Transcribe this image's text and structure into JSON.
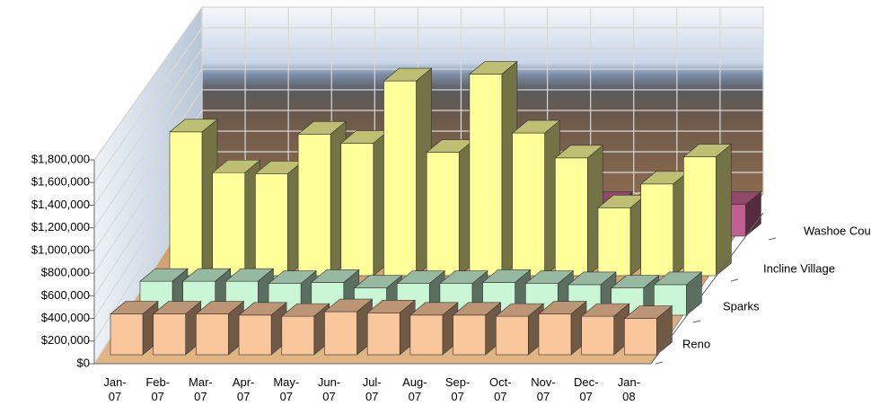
{
  "chart_data": {
    "type": "bar3d",
    "categories": [
      "Jan-07",
      "Feb-07",
      "Mar-07",
      "Apr-07",
      "May-07",
      "Jun-07",
      "Jul-07",
      "Aug-07",
      "Sep-07",
      "Oct-07",
      "Nov-07",
      "Dec-07",
      "Jan-08"
    ],
    "series": [
      {
        "name": "Reno",
        "color": "#f9c79b",
        "values": [
          360000,
          360000,
          360000,
          350000,
          340000,
          380000,
          370000,
          350000,
          350000,
          340000,
          360000,
          340000,
          320000
        ]
      },
      {
        "name": "Sparks",
        "color": "#c9f7d6",
        "values": [
          300000,
          300000,
          300000,
          280000,
          290000,
          240000,
          280000,
          280000,
          290000,
          280000,
          270000,
          240000,
          270000
        ]
      },
      {
        "name": "Incline Village",
        "color": "#ffff99",
        "values": [
          1270000,
          910000,
          900000,
          1250000,
          1170000,
          1720000,
          1090000,
          1780000,
          1260000,
          1040000,
          600000,
          810000,
          1050000
        ]
      },
      {
        "name": "Washoe County",
        "color": "#c0608e",
        "values": [
          280000,
          280000,
          280000,
          280000,
          280000,
          280000,
          280000,
          280000,
          280000,
          280000,
          280000,
          280000,
          280000
        ]
      }
    ],
    "ylim": [
      0,
      1800000
    ],
    "yticks": [
      {
        "value": 0,
        "label": "$0"
      },
      {
        "value": 200000,
        "label": "$200,000"
      },
      {
        "value": 400000,
        "label": "$400,000"
      },
      {
        "value": 600000,
        "label": "$600,000"
      },
      {
        "value": 800000,
        "label": "$800,000"
      },
      {
        "value": 1000000,
        "label": "$1,000,000"
      },
      {
        "value": 1200000,
        "label": "$1,200,000"
      },
      {
        "value": 1400000,
        "label": "$1,400,000"
      },
      {
        "value": 1600000,
        "label": "$1,600,000"
      },
      {
        "value": 1800000,
        "label": "$1,800,000"
      }
    ],
    "grid": true
  }
}
